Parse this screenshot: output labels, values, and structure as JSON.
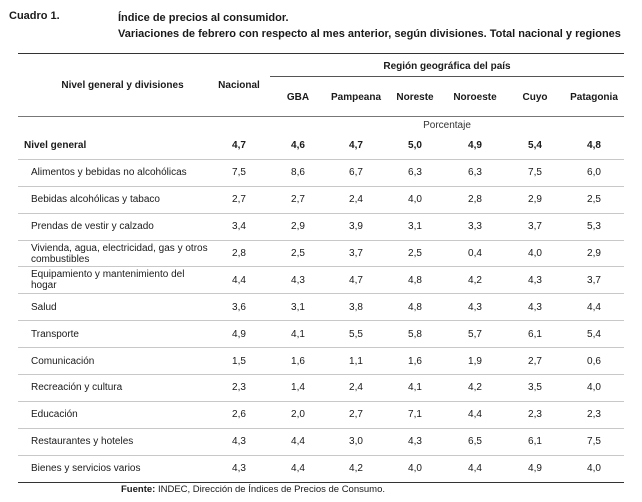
{
  "caption": {
    "label": "Cuadro 1.",
    "title": "Índice de precios al consumidor.",
    "subtitle": "Variaciones de febrero con respecto al mes anterior, según divisiones. Total nacional y regiones"
  },
  "header": {
    "first_col": "Nivel general y divisiones",
    "national": "Nacional",
    "region_group": "Región geográfica del país",
    "regions": [
      "GBA",
      "Pampeana",
      "Noreste",
      "Noroeste",
      "Cuyo",
      "Patagonia"
    ],
    "unit": "Porcentaje"
  },
  "rows": [
    {
      "label": "Nivel general",
      "values": [
        "4,7",
        "4,6",
        "4,7",
        "5,0",
        "4,9",
        "5,4",
        "4,8"
      ]
    },
    {
      "label": "Alimentos y bebidas no alcohólicas",
      "values": [
        "7,5",
        "8,6",
        "6,7",
        "6,3",
        "6,3",
        "7,5",
        "6,0"
      ]
    },
    {
      "label": "Bebidas alcohólicas y tabaco",
      "values": [
        "2,7",
        "2,7",
        "2,4",
        "4,0",
        "2,8",
        "2,9",
        "2,5"
      ]
    },
    {
      "label": "Prendas de vestir y calzado",
      "values": [
        "3,4",
        "2,9",
        "3,9",
        "3,1",
        "3,3",
        "3,7",
        "5,3"
      ]
    },
    {
      "label": "Vivienda, agua, electricidad, gas y otros combustibles",
      "values": [
        "2,8",
        "2,5",
        "3,7",
        "2,5",
        "0,4",
        "4,0",
        "2,9"
      ]
    },
    {
      "label": "Equipamiento y mantenimiento del hogar",
      "values": [
        "4,4",
        "4,3",
        "4,7",
        "4,8",
        "4,2",
        "4,3",
        "3,7"
      ]
    },
    {
      "label": "Salud",
      "values": [
        "3,6",
        "3,1",
        "3,8",
        "4,8",
        "4,3",
        "4,3",
        "4,4"
      ]
    },
    {
      "label": "Transporte",
      "values": [
        "4,9",
        "4,1",
        "5,5",
        "5,8",
        "5,7",
        "6,1",
        "5,4"
      ]
    },
    {
      "label": "Comunicación",
      "values": [
        "1,5",
        "1,6",
        "1,1",
        "1,6",
        "1,9",
        "2,7",
        "0,6"
      ]
    },
    {
      "label": "Recreación y cultura",
      "values": [
        "2,3",
        "1,4",
        "2,4",
        "4,1",
        "4,2",
        "3,5",
        "4,0"
      ]
    },
    {
      "label": "Educación",
      "values": [
        "2,6",
        "2,0",
        "2,7",
        "7,1",
        "4,4",
        "2,3",
        "2,3"
      ]
    },
    {
      "label": "Restaurantes y hoteles",
      "values": [
        "4,3",
        "4,4",
        "3,0",
        "4,3",
        "6,5",
        "6,1",
        "7,5"
      ]
    },
    {
      "label": "Bienes y servicios varios",
      "values": [
        "4,3",
        "4,4",
        "4,2",
        "4,0",
        "4,4",
        "4,9",
        "4,0"
      ]
    }
  ],
  "source": {
    "label": "Fuente:",
    "text": "INDEC, Dirección de Índices de Precios de Consumo."
  }
}
